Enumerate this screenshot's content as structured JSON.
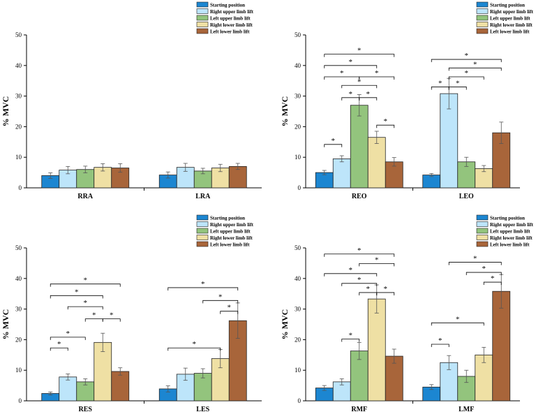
{
  "chart_data": [
    {
      "type": "bar",
      "ylabel": "% MVC",
      "ylim": [
        0,
        50
      ],
      "yticks": [
        "0",
        "10",
        "20",
        "30",
        "40",
        "50"
      ],
      "categories": [
        "RRA",
        "LRA"
      ],
      "series": [
        {
          "name": "Starting position",
          "values": [
            4.0,
            4.2
          ],
          "errors": [
            0.9,
            1.0
          ]
        },
        {
          "name": "Right upper limb lift",
          "values": [
            5.8,
            6.7
          ],
          "errors": [
            1.2,
            1.3
          ]
        },
        {
          "name": "Left upper limb lift",
          "values": [
            6.0,
            5.5
          ],
          "errors": [
            1.1,
            0.9
          ]
        },
        {
          "name": "Right lower limb lift",
          "values": [
            6.7,
            6.5
          ],
          "errors": [
            1.2,
            1.2
          ]
        },
        {
          "name": "Left lower limb lift",
          "values": [
            6.5,
            7.0
          ],
          "errors": [
            1.4,
            1.0
          ]
        }
      ],
      "significance": []
    },
    {
      "type": "bar",
      "ylabel": "% MVC",
      "ylim": [
        0,
        50
      ],
      "yticks": [
        "0",
        "10",
        "20",
        "30",
        "40",
        "50"
      ],
      "categories": [
        "REO",
        "LEO"
      ],
      "series": [
        {
          "name": "Starting position",
          "values": [
            5.0,
            4.2
          ],
          "errors": [
            0.7,
            0.5
          ]
        },
        {
          "name": "Right upper limb lift",
          "values": [
            9.5,
            30.8
          ],
          "errors": [
            1.0,
            5.0
          ]
        },
        {
          "name": "Left upper limb lift",
          "values": [
            27.0,
            8.5
          ],
          "errors": [
            3.5,
            1.5
          ]
        },
        {
          "name": "Right lower limb lift",
          "values": [
            16.5,
            6.3
          ],
          "errors": [
            2.0,
            1.0
          ]
        },
        {
          "name": "Left lower limb lift",
          "values": [
            8.5,
            18.0
          ],
          "errors": [
            1.4,
            3.5
          ]
        }
      ],
      "significance": [
        {
          "group": 0,
          "from": 0,
          "to": 1,
          "y": 14.2,
          "label": "*"
        },
        {
          "group": 0,
          "from": 1,
          "to": 2,
          "y": 29.5,
          "label": "*"
        },
        {
          "group": 0,
          "from": 2,
          "to": 3,
          "y": 29.5,
          "label": "*"
        },
        {
          "group": 0,
          "from": 3,
          "to": 4,
          "y": 20.5,
          "label": "*"
        },
        {
          "group": 0,
          "from": 1,
          "to": 3,
          "y": 33.5,
          "label": "*"
        },
        {
          "group": 0,
          "from": 0,
          "to": 2,
          "y": 36.3,
          "label": "*"
        },
        {
          "group": 0,
          "from": 2,
          "to": 4,
          "y": 36.3,
          "label": "*"
        },
        {
          "group": 0,
          "from": 0,
          "to": 3,
          "y": 40.0,
          "label": "*"
        },
        {
          "group": 0,
          "from": 0,
          "to": 4,
          "y": 43.7,
          "label": "*"
        },
        {
          "group": 1,
          "from": 0,
          "to": 1,
          "y": 33.0,
          "label": "*"
        },
        {
          "group": 1,
          "from": 1,
          "to": 2,
          "y": 33.0,
          "label": "*"
        },
        {
          "group": 1,
          "from": 1,
          "to": 3,
          "y": 36.3,
          "label": "*"
        },
        {
          "group": 1,
          "from": 1,
          "to": 4,
          "y": 39.2,
          "label": "*"
        },
        {
          "group": 1,
          "from": 0,
          "to": 4,
          "y": 42.0,
          "label": "*"
        }
      ]
    },
    {
      "type": "bar",
      "ylabel": "% MVC",
      "ylim": [
        0,
        50
      ],
      "yticks": [
        "0",
        "10",
        "20",
        "30",
        "40",
        "50"
      ],
      "categories": [
        "RES",
        "LES"
      ],
      "series": [
        {
          "name": "Starting position",
          "values": [
            2.4,
            3.9
          ],
          "errors": [
            0.5,
            1.0
          ]
        },
        {
          "name": "Right upper limb lift",
          "values": [
            7.8,
            8.7
          ],
          "errors": [
            1.0,
            2.0
          ]
        },
        {
          "name": "Left upper limb lift",
          "values": [
            6.2,
            9.0
          ],
          "errors": [
            1.0,
            1.5
          ]
        },
        {
          "name": "Right lower limb lift",
          "values": [
            19.1,
            13.8
          ],
          "errors": [
            3.0,
            3.0
          ]
        },
        {
          "name": "Left lower limb lift",
          "values": [
            9.6,
            26.2
          ],
          "errors": [
            1.2,
            5.8
          ]
        }
      ],
      "significance": [
        {
          "group": 0,
          "from": 0,
          "to": 1,
          "y": 17.3,
          "label": "*"
        },
        {
          "group": 0,
          "from": 0,
          "to": 2,
          "y": 20.8,
          "label": "*"
        },
        {
          "group": 0,
          "from": 3,
          "to": 4,
          "y": 26.8,
          "label": "*"
        },
        {
          "group": 0,
          "from": 2,
          "to": 3,
          "y": 26.8,
          "label": "*"
        },
        {
          "group": 0,
          "from": 1,
          "to": 3,
          "y": 30.8,
          "label": "*"
        },
        {
          "group": 0,
          "from": 0,
          "to": 3,
          "y": 34.4,
          "label": "*"
        },
        {
          "group": 0,
          "from": 0,
          "to": 4,
          "y": 38.2,
          "label": "*"
        },
        {
          "group": 1,
          "from": 0,
          "to": 3,
          "y": 17.3,
          "label": "*"
        },
        {
          "group": 1,
          "from": 3,
          "to": 4,
          "y": 29.3,
          "label": "*"
        },
        {
          "group": 1,
          "from": 2,
          "to": 4,
          "y": 32.8,
          "label": "*"
        },
        {
          "group": 1,
          "from": 0,
          "to": 4,
          "y": 37.0,
          "label": "*"
        }
      ]
    },
    {
      "type": "bar",
      "ylabel": "% MVC",
      "ylim": [
        0,
        50
      ],
      "yticks": [
        "0",
        "10",
        "20",
        "30",
        "40",
        "50"
      ],
      "categories": [
        "RMF",
        "LMF"
      ],
      "series": [
        {
          "name": "Starting position",
          "values": [
            4.2,
            4.5
          ],
          "errors": [
            0.8,
            0.8
          ]
        },
        {
          "name": "Right upper limb lift",
          "values": [
            6.2,
            12.5
          ],
          "errors": [
            1.0,
            2.3
          ]
        },
        {
          "name": "Left upper limb lift",
          "values": [
            16.3,
            8.0
          ],
          "errors": [
            2.8,
            2.0
          ]
        },
        {
          "name": "Right lower limb lift",
          "values": [
            33.3,
            15.0
          ],
          "errors": [
            4.6,
            2.5
          ]
        },
        {
          "name": "Left lower limb lift",
          "values": [
            14.6,
            35.8
          ],
          "errors": [
            2.3,
            5.5
          ]
        }
      ],
      "significance": [
        {
          "group": 0,
          "from": 1,
          "to": 2,
          "y": 20.2,
          "label": "*"
        },
        {
          "group": 0,
          "from": 2,
          "to": 3,
          "y": 35.4,
          "label": "*"
        },
        {
          "group": 0,
          "from": 3,
          "to": 4,
          "y": 35.4,
          "label": "*"
        },
        {
          "group": 0,
          "from": 1,
          "to": 3,
          "y": 38.4,
          "label": "*"
        },
        {
          "group": 0,
          "from": 0,
          "to": 3,
          "y": 41.6,
          "label": "*"
        },
        {
          "group": 0,
          "from": 2,
          "to": 4,
          "y": 44.9,
          "label": "*"
        },
        {
          "group": 0,
          "from": 0,
          "to": 4,
          "y": 48.0,
          "label": "*"
        },
        {
          "group": 1,
          "from": 0,
          "to": 1,
          "y": 18.5,
          "label": "*"
        },
        {
          "group": 1,
          "from": 0,
          "to": 3,
          "y": 25.5,
          "label": "*"
        },
        {
          "group": 1,
          "from": 3,
          "to": 4,
          "y": 38.8,
          "label": "*"
        },
        {
          "group": 1,
          "from": 2,
          "to": 4,
          "y": 42.0,
          "label": "*"
        },
        {
          "group": 1,
          "from": 1,
          "to": 4,
          "y": 45.3,
          "label": "*"
        }
      ]
    }
  ],
  "legend": [
    {
      "label": "Starting position",
      "color": "#1C86D1"
    },
    {
      "label": "Right upper limb lift",
      "color": "#BDE5FA"
    },
    {
      "label": "Left upper limb lift",
      "color": "#93C47D"
    },
    {
      "label": "Right lower limb lift",
      "color": "#EFE0A4"
    },
    {
      "label": "Left lower limb lift",
      "color": "#A8653A"
    }
  ]
}
